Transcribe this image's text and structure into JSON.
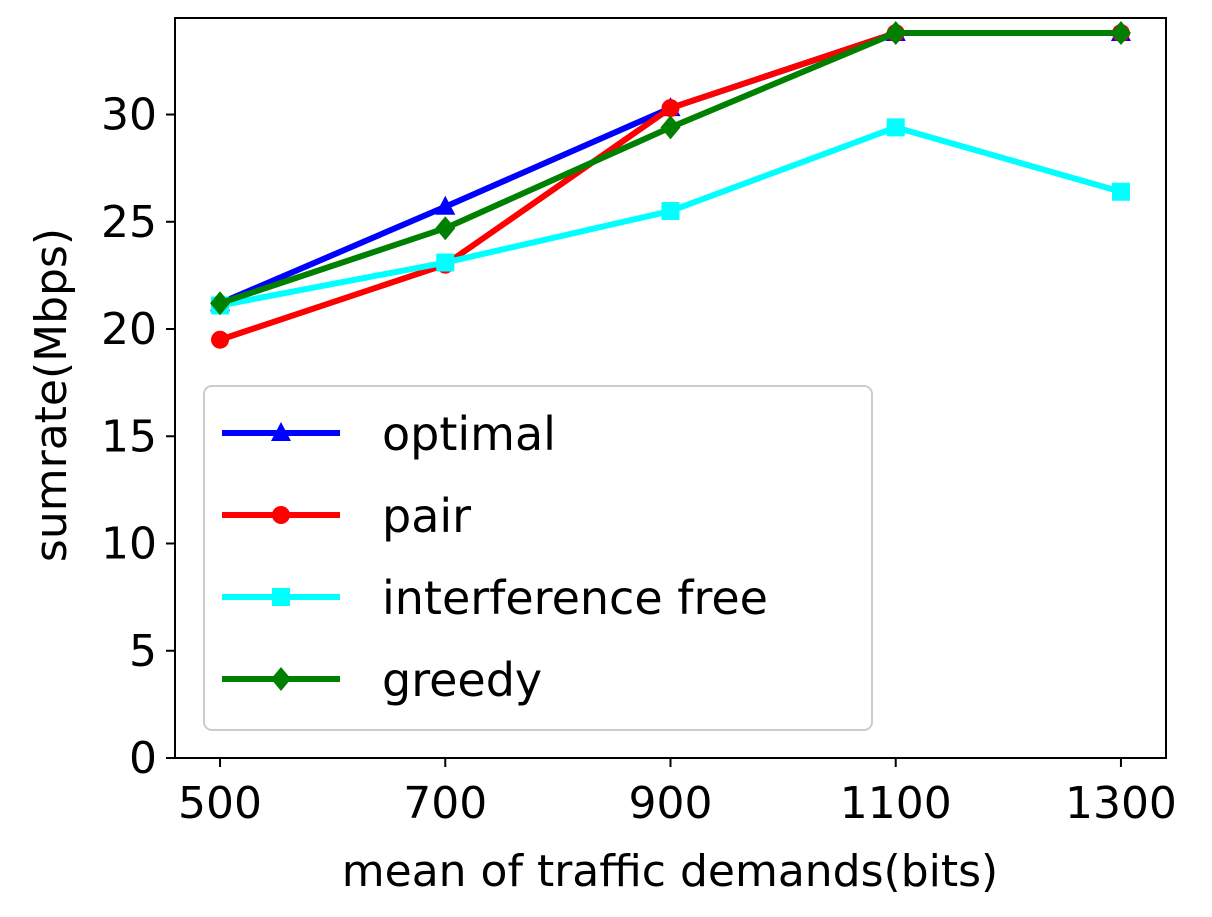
{
  "chart_data": {
    "type": "line",
    "title": "",
    "xlabel": "mean of traffic demands(bits)",
    "ylabel": "sumrate(Mbps)",
    "x": [
      500,
      700,
      900,
      1100,
      1300
    ],
    "xticks": [
      500,
      700,
      900,
      1100,
      1300
    ],
    "yticks": [
      0,
      5,
      10,
      15,
      20,
      25,
      30
    ],
    "xlim": [
      460,
      1340
    ],
    "ylim": [
      0,
      34.5
    ],
    "grid": false,
    "legend_position": "lower-left",
    "series": [
      {
        "name": "optimal",
        "color": "#0000ff",
        "marker": "triangle",
        "values": [
          21.2,
          25.7,
          30.3,
          33.8,
          33.8
        ]
      },
      {
        "name": "pair",
        "color": "#ff0000",
        "marker": "circle",
        "values": [
          19.5,
          23.0,
          30.3,
          33.8,
          33.8
        ]
      },
      {
        "name": "interference free",
        "color": "#00ffff",
        "marker": "square",
        "values": [
          21.1,
          23.1,
          25.5,
          29.4,
          26.4
        ]
      },
      {
        "name": "greedy",
        "color": "#008000",
        "marker": "diamond",
        "values": [
          21.2,
          24.7,
          29.4,
          33.8,
          33.8
        ]
      }
    ]
  }
}
